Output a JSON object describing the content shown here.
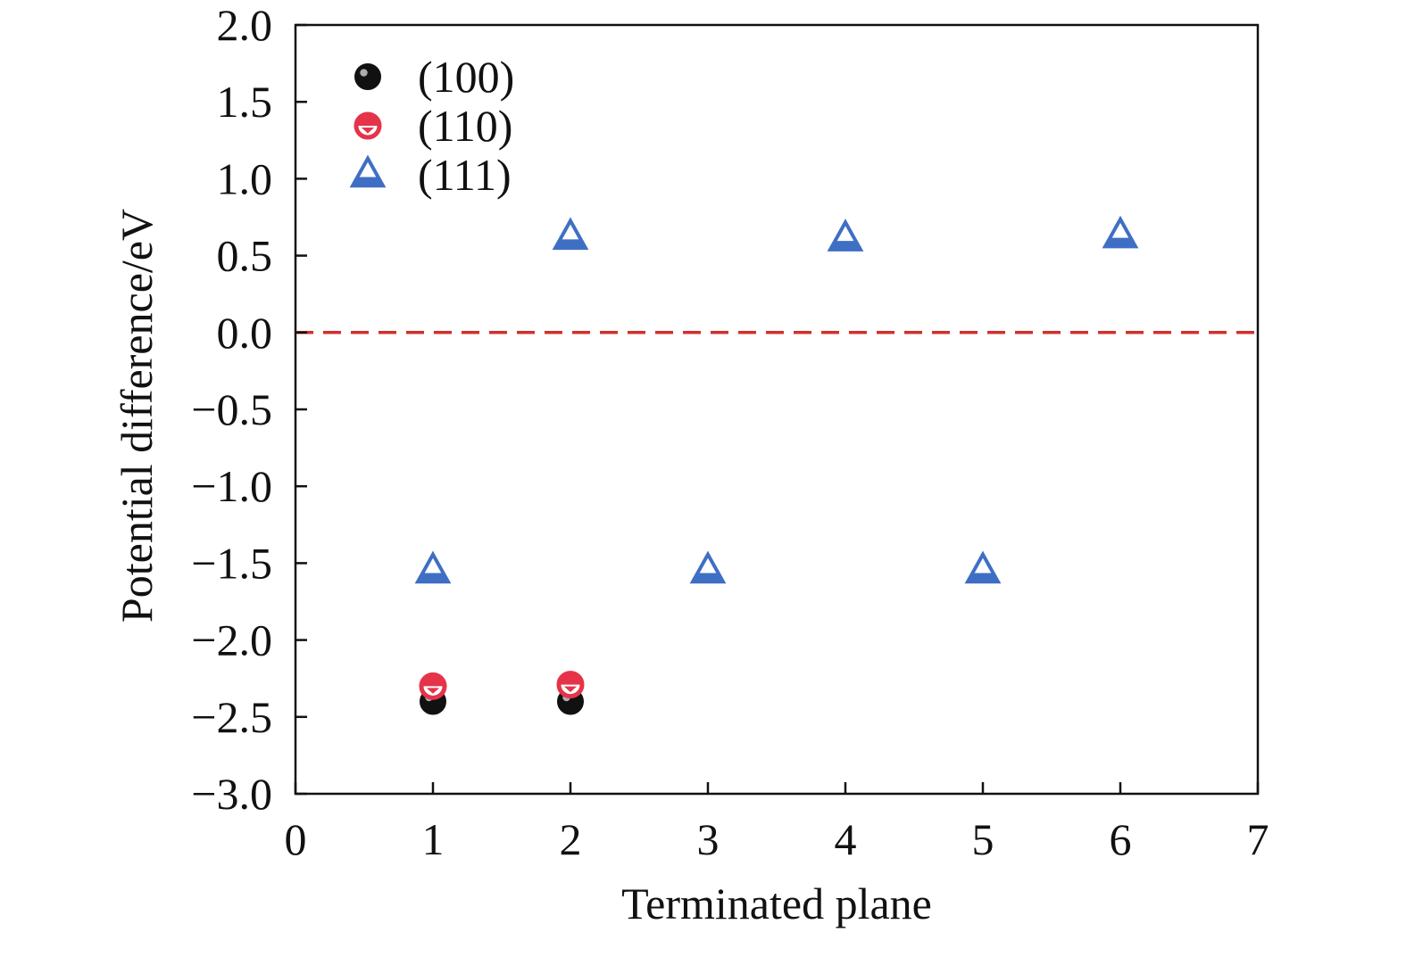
{
  "chart_data": {
    "type": "scatter",
    "title": "",
    "xlabel": "Terminated plane",
    "ylabel": "Potential difference/eV",
    "xlim": [
      0,
      7
    ],
    "ylim": [
      -3.0,
      2.0
    ],
    "x_ticks": [
      "0",
      "1",
      "2",
      "3",
      "4",
      "5",
      "6",
      "7"
    ],
    "y_ticks": [
      "2.0",
      "1.5",
      "1.0",
      "0.5",
      "0.0",
      "−0.5",
      "−1.0",
      "−1.5",
      "−2.0",
      "−2.5",
      "−3.0"
    ],
    "grid": false,
    "legend_position": "top-left",
    "reference_line": {
      "y": 0.0,
      "style": "dashed",
      "color": "#d0312d"
    },
    "series": [
      {
        "name": "(100)",
        "marker": "filled-circle",
        "color": "#111111",
        "points": [
          {
            "x": 1,
            "y": -2.4
          },
          {
            "x": 2,
            "y": -2.4
          }
        ]
      },
      {
        "name": "(110)",
        "marker": "half-filled-circle",
        "color": "#e5344a",
        "points": [
          {
            "x": 1,
            "y": -2.3
          },
          {
            "x": 2,
            "y": -2.29
          }
        ]
      },
      {
        "name": "(111)",
        "marker": "half-filled-triangle",
        "color": "#3f6fc4",
        "points": [
          {
            "x": 1,
            "y": -1.55
          },
          {
            "x": 2,
            "y": 0.62
          },
          {
            "x": 3,
            "y": -1.55
          },
          {
            "x": 4,
            "y": 0.61
          },
          {
            "x": 5,
            "y": -1.55
          },
          {
            "x": 6,
            "y": 0.63
          }
        ]
      }
    ]
  }
}
